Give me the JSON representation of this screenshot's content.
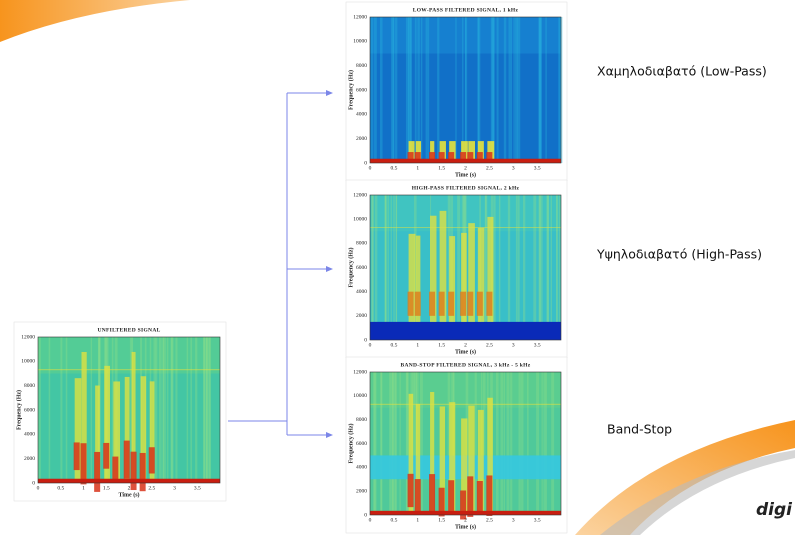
{
  "panels": [
    {
      "title": "UNFILTERED SIGNAL"
    },
    {
      "title": "LOW-PASS FILTERED SIGNAL, 1 kHz"
    },
    {
      "title": "HIGH-PASS FILTERED SIGNAL, 2 kHz"
    },
    {
      "title": "BAND-STOP FILTERED SIGNAL, 3 kHz - 5 kHz"
    }
  ],
  "axes": {
    "x_label": "Time (s)",
    "y_label": "Frequency (Hz)",
    "x_ticks": [
      "0",
      "0.5",
      "1",
      "1.5",
      "2",
      "2.5",
      "3",
      "3.5"
    ],
    "y_ticks": [
      "0",
      "2000",
      "4000",
      "6000",
      "8000",
      "10000",
      "12000"
    ]
  },
  "labels": [
    "Χαμηλοδιαβατό (Low-Pass)",
    "Υψηλοδιαβατό (High-Pass)",
    "Band-Stop"
  ],
  "logo": "digi"
}
